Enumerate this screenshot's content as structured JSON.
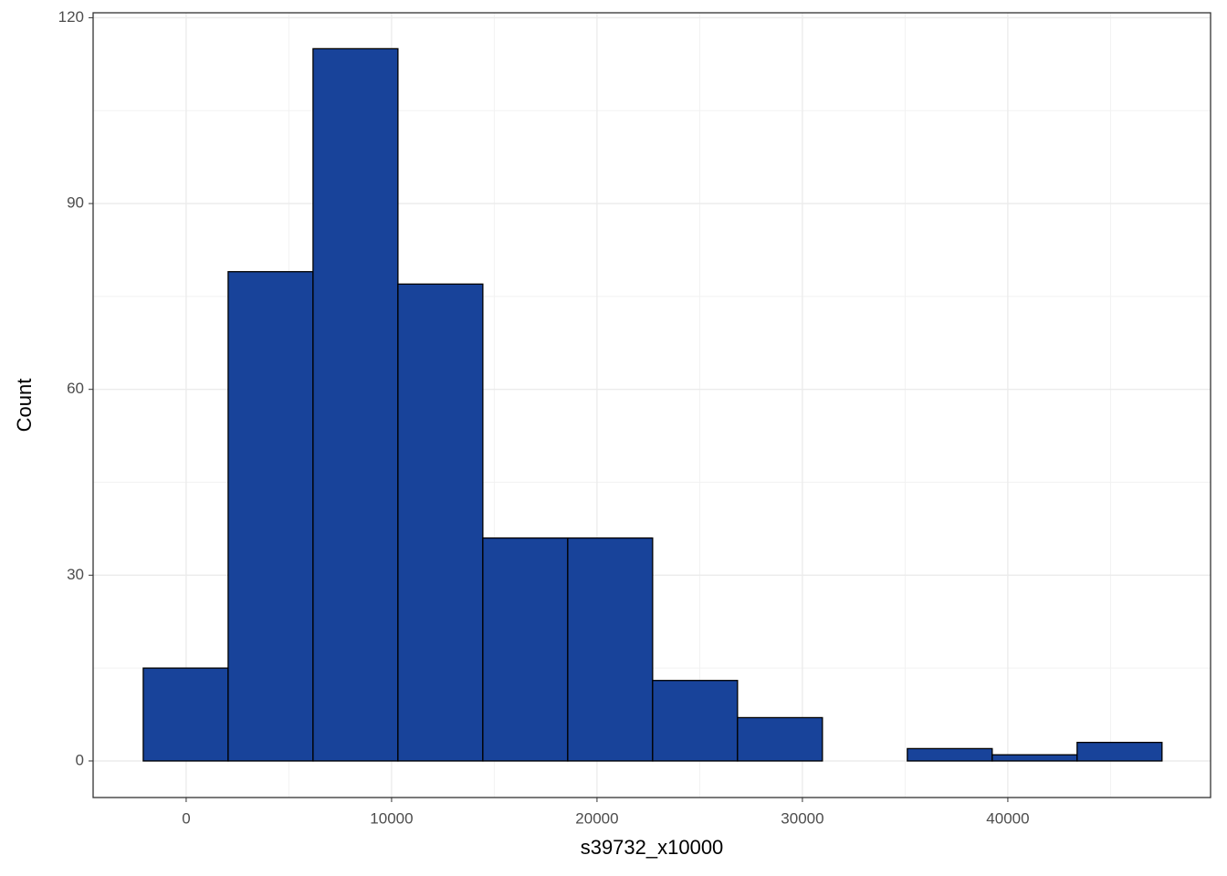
{
  "chart_data": {
    "type": "histogram",
    "x_label": "s39732_x10000",
    "y_label": "Count",
    "bins": [
      -2090,
      2043,
      6176,
      10309,
      14442,
      18575,
      22708,
      26841,
      30974,
      35107,
      39240,
      43373,
      47506
    ],
    "values": [
      15,
      79,
      115,
      77,
      36,
      36,
      13,
      7,
      0,
      2,
      1,
      3
    ],
    "color": "#18439a",
    "edge_color": "#000000",
    "xlim": [
      -4530,
      49870
    ],
    "ylim": [
      -5.9,
      120.8
    ],
    "xticks": [
      0,
      10000,
      20000,
      30000,
      40000
    ],
    "yticks": [
      0,
      30,
      60,
      90,
      120
    ],
    "grid": true
  }
}
